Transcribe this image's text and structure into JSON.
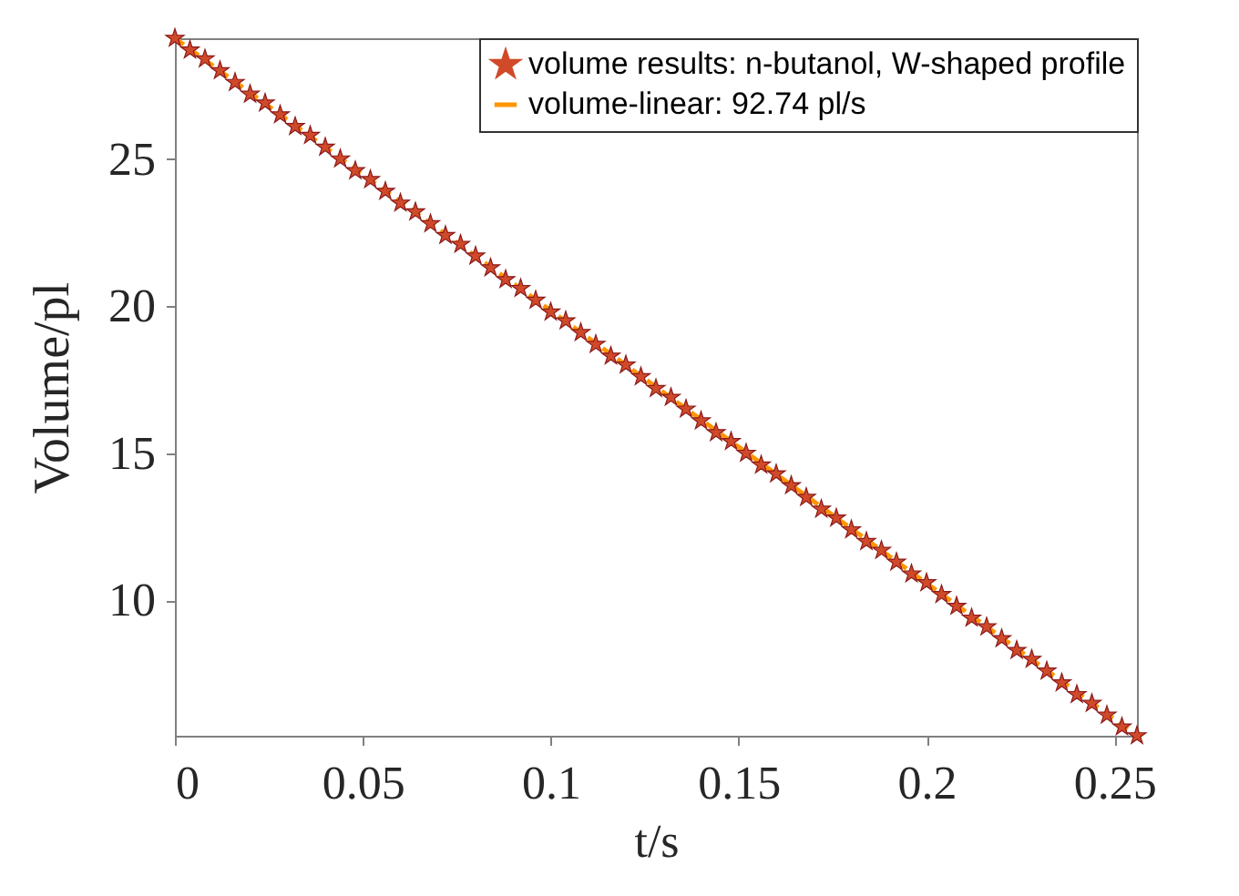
{
  "chart_data": {
    "type": "scatter",
    "xlabel": "t/s",
    "ylabel": "Volume/pl",
    "xlim": [
      0,
      0.256
    ],
    "ylim": [
      5.4,
      29.1
    ],
    "xticks": [
      0,
      0.05,
      0.1,
      0.15,
      0.2,
      0.25
    ],
    "yticks": [
      10,
      15,
      20,
      25
    ],
    "grid": false,
    "legend": "top right",
    "x": [
      0,
      0.004,
      0.008,
      0.012,
      0.016,
      0.02,
      0.024,
      0.028,
      0.032,
      0.036,
      0.04,
      0.044,
      0.048,
      0.052,
      0.056,
      0.06,
      0.064,
      0.068,
      0.072,
      0.076,
      0.08,
      0.084,
      0.088,
      0.092,
      0.096,
      0.1,
      0.104,
      0.108,
      0.112,
      0.116,
      0.12,
      0.124,
      0.128,
      0.132,
      0.136,
      0.14,
      0.144,
      0.148,
      0.152,
      0.156,
      0.16,
      0.164,
      0.168,
      0.172,
      0.176,
      0.18,
      0.184,
      0.188,
      0.192,
      0.196,
      0.2,
      0.204,
      0.208,
      0.212,
      0.216,
      0.22,
      0.224,
      0.228,
      0.232,
      0.236,
      0.24,
      0.244,
      0.248,
      0.252,
      0.256
    ],
    "series": [
      {
        "name": "volume results: n-butanol, W-shaped profile",
        "marker": "star",
        "color": "#d04a2a",
        "values": [
          29.1,
          28.7,
          28.4,
          28.0,
          27.6,
          27.2,
          26.9,
          26.5,
          26.1,
          25.8,
          25.4,
          25.0,
          24.6,
          24.3,
          23.9,
          23.5,
          23.2,
          22.8,
          22.4,
          22.1,
          21.7,
          21.3,
          20.9,
          20.6,
          20.2,
          19.8,
          19.5,
          19.1,
          18.7,
          18.3,
          18.0,
          17.6,
          17.2,
          16.9,
          16.5,
          16.1,
          15.7,
          15.4,
          15.0,
          14.6,
          14.3,
          13.9,
          13.5,
          13.1,
          12.8,
          12.4,
          12.0,
          11.7,
          11.3,
          10.9,
          10.6,
          10.2,
          9.8,
          9.4,
          9.1,
          8.7,
          8.3,
          8.0,
          7.6,
          7.2,
          6.8,
          6.5,
          6.1,
          5.7,
          5.4
        ]
      },
      {
        "name": "volume-linear: 92.74 pl/s",
        "type": "line",
        "line_style": "dashed",
        "color": "#ff9500",
        "x": [
          0,
          0.256
        ],
        "values": [
          29.1,
          5.4
        ]
      }
    ]
  }
}
